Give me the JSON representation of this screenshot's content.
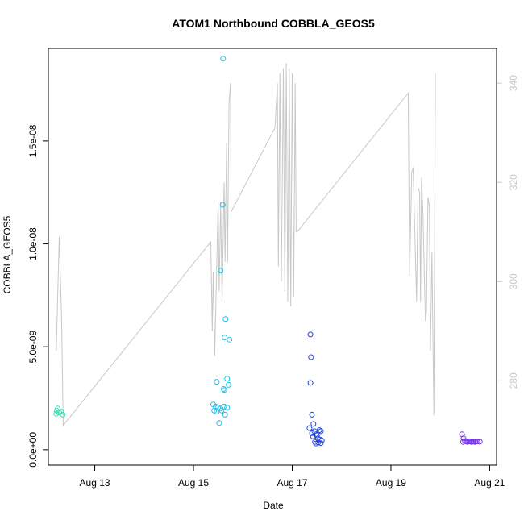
{
  "chart_data": {
    "type": "scatter",
    "title": "ATOM1 Northbound COBBLA_GEOS5",
    "xlabel": "Date",
    "ylabel": "COBBLA_GEOS5",
    "x_unit": "days since Aug 12 (00:00)",
    "xlim": [
      0.06,
      9.14
    ],
    "ylim": [
      -7.5e-10,
      1.95e-08
    ],
    "y_ticks": [
      0,
      5e-09,
      1e-08,
      1.5e-08
    ],
    "y_tick_labels": [
      "0.0e+00",
      "5.0e-09",
      "1.0e-08",
      "1.5e-08"
    ],
    "x_ticks": [
      1,
      3,
      5,
      7,
      9
    ],
    "x_tick_labels": [
      "Aug 13",
      "Aug 15",
      "Aug 17",
      "Aug 19",
      "Aug 21"
    ],
    "secondary_axis": {
      "ylim": [
        263,
        347
      ],
      "ticks": [
        280,
        300,
        320,
        340
      ],
      "tick_labels": [
        "280",
        "300",
        "320",
        "340"
      ],
      "color": "#c8c8c8"
    },
    "series": [
      {
        "name": "scatter-day1",
        "color": "#33e0b0",
        "points": [
          [
            0.23,
            1.9e-09
          ],
          [
            0.25,
            2e-09
          ],
          [
            0.28,
            1.8e-09
          ],
          [
            0.32,
            1.85e-09
          ],
          [
            0.35,
            1.7e-09
          ],
          [
            0.22,
            1.75e-09
          ]
        ]
      },
      {
        "name": "scatter-day2",
        "color": "#22c0e8",
        "points": [
          [
            3.6,
            1.9e-08
          ],
          [
            3.59,
            1.19e-08
          ],
          [
            3.55,
            8.7e-09
          ],
          [
            3.65,
            6.35e-09
          ],
          [
            3.63,
            5.45e-09
          ],
          [
            3.73,
            5.35e-09
          ],
          [
            3.68,
            3.45e-09
          ],
          [
            3.47,
            3.3e-09
          ],
          [
            3.71,
            3.15e-09
          ],
          [
            3.61,
            2.95e-09
          ],
          [
            3.63,
            2.9e-09
          ],
          [
            3.4,
            2.2e-09
          ],
          [
            3.45,
            2.1e-09
          ],
          [
            3.5,
            2.05e-09
          ],
          [
            3.55,
            2e-09
          ],
          [
            3.62,
            2.1e-09
          ],
          [
            3.68,
            2.05e-09
          ],
          [
            3.42,
            1.9e-09
          ],
          [
            3.47,
            1.85e-09
          ],
          [
            3.57,
            1.9e-09
          ],
          [
            3.64,
            1.7e-09
          ],
          [
            3.52,
            1.3e-09
          ]
        ]
      },
      {
        "name": "scatter-day3",
        "color": "#2244dd",
        "points": [
          [
            5.37,
            5.6e-09
          ],
          [
            5.38,
            4.5e-09
          ],
          [
            5.37,
            3.25e-09
          ],
          [
            5.4,
            1.7e-09
          ],
          [
            5.43,
            1.25e-09
          ],
          [
            5.35,
            1.05e-09
          ],
          [
            5.45,
            9e-10
          ],
          [
            5.55,
            9.5e-10
          ],
          [
            5.58,
            9e-10
          ],
          [
            5.4,
            8e-10
          ],
          [
            5.48,
            7.5e-10
          ],
          [
            5.5,
            7e-10
          ],
          [
            5.42,
            6.5e-10
          ],
          [
            5.52,
            5.5e-10
          ],
          [
            5.56,
            5e-10
          ],
          [
            5.6,
            4.5e-10
          ],
          [
            5.46,
            3.8e-10
          ],
          [
            5.53,
            3.5e-10
          ],
          [
            5.58,
            3.2e-10
          ],
          [
            5.48,
            3e-10
          ]
        ]
      },
      {
        "name": "scatter-day4",
        "color": "#7733ee",
        "points": [
          [
            8.44,
            7.5e-10
          ],
          [
            8.47,
            5.5e-10
          ],
          [
            8.5,
            4.2e-10
          ],
          [
            8.55,
            3.8e-10
          ],
          [
            8.6,
            4e-10
          ],
          [
            8.63,
            3.8e-10
          ],
          [
            8.67,
            4e-10
          ],
          [
            8.7,
            3.8e-10
          ],
          [
            8.75,
            4e-10
          ],
          [
            8.8,
            3.9e-10
          ],
          [
            8.46,
            3.8e-10
          ],
          [
            8.53,
            4e-10
          ],
          [
            8.58,
            4.1e-10
          ],
          [
            8.65,
            3.9e-10
          ],
          [
            8.72,
            4e-10
          ]
        ]
      }
    ],
    "line": {
      "name": "secondary-line",
      "color": "#c8c8c8",
      "points": [
        [
          0.22,
          286
        ],
        [
          0.28,
          309
        ],
        [
          0.33,
          292
        ],
        [
          0.36,
          271
        ],
        [
          3.35,
          308
        ],
        [
          3.38,
          290
        ],
        [
          3.4,
          302
        ],
        [
          3.43,
          285
        ],
        [
          3.5,
          316
        ],
        [
          3.52,
          298
        ],
        [
          3.55,
          316
        ],
        [
          3.58,
          296
        ],
        [
          3.62,
          320
        ],
        [
          3.64,
          304
        ],
        [
          3.67,
          328
        ],
        [
          3.69,
          304
        ],
        [
          3.72,
          336
        ],
        [
          3.75,
          340
        ],
        [
          3.76,
          314
        ],
        [
          4.65,
          331
        ],
        [
          4.7,
          340
        ],
        [
          4.72,
          303
        ],
        [
          4.75,
          342
        ],
        [
          4.78,
          300
        ],
        [
          4.82,
          343
        ],
        [
          4.85,
          298
        ],
        [
          4.88,
          344
        ],
        [
          4.91,
          296
        ],
        [
          4.94,
          343
        ],
        [
          4.97,
          295
        ],
        [
          5.0,
          342
        ],
        [
          5.03,
          297
        ],
        [
          5.06,
          340
        ],
        [
          5.08,
          310
        ],
        [
          5.1,
          310
        ],
        [
          7.35,
          338
        ],
        [
          7.38,
          301
        ],
        [
          7.42,
          322
        ],
        [
          7.45,
          323
        ],
        [
          7.48,
          311
        ],
        [
          7.52,
          296
        ],
        [
          7.55,
          319
        ],
        [
          7.58,
          318
        ],
        [
          7.6,
          296
        ],
        [
          7.62,
          321
        ],
        [
          7.65,
          313
        ],
        [
          7.67,
          304
        ],
        [
          7.7,
          292
        ],
        [
          7.72,
          294
        ],
        [
          7.75,
          317
        ],
        [
          7.78,
          315
        ],
        [
          7.8,
          286
        ],
        [
          7.83,
          306
        ],
        [
          7.87,
          273
        ],
        [
          7.9,
          342
        ]
      ]
    }
  }
}
